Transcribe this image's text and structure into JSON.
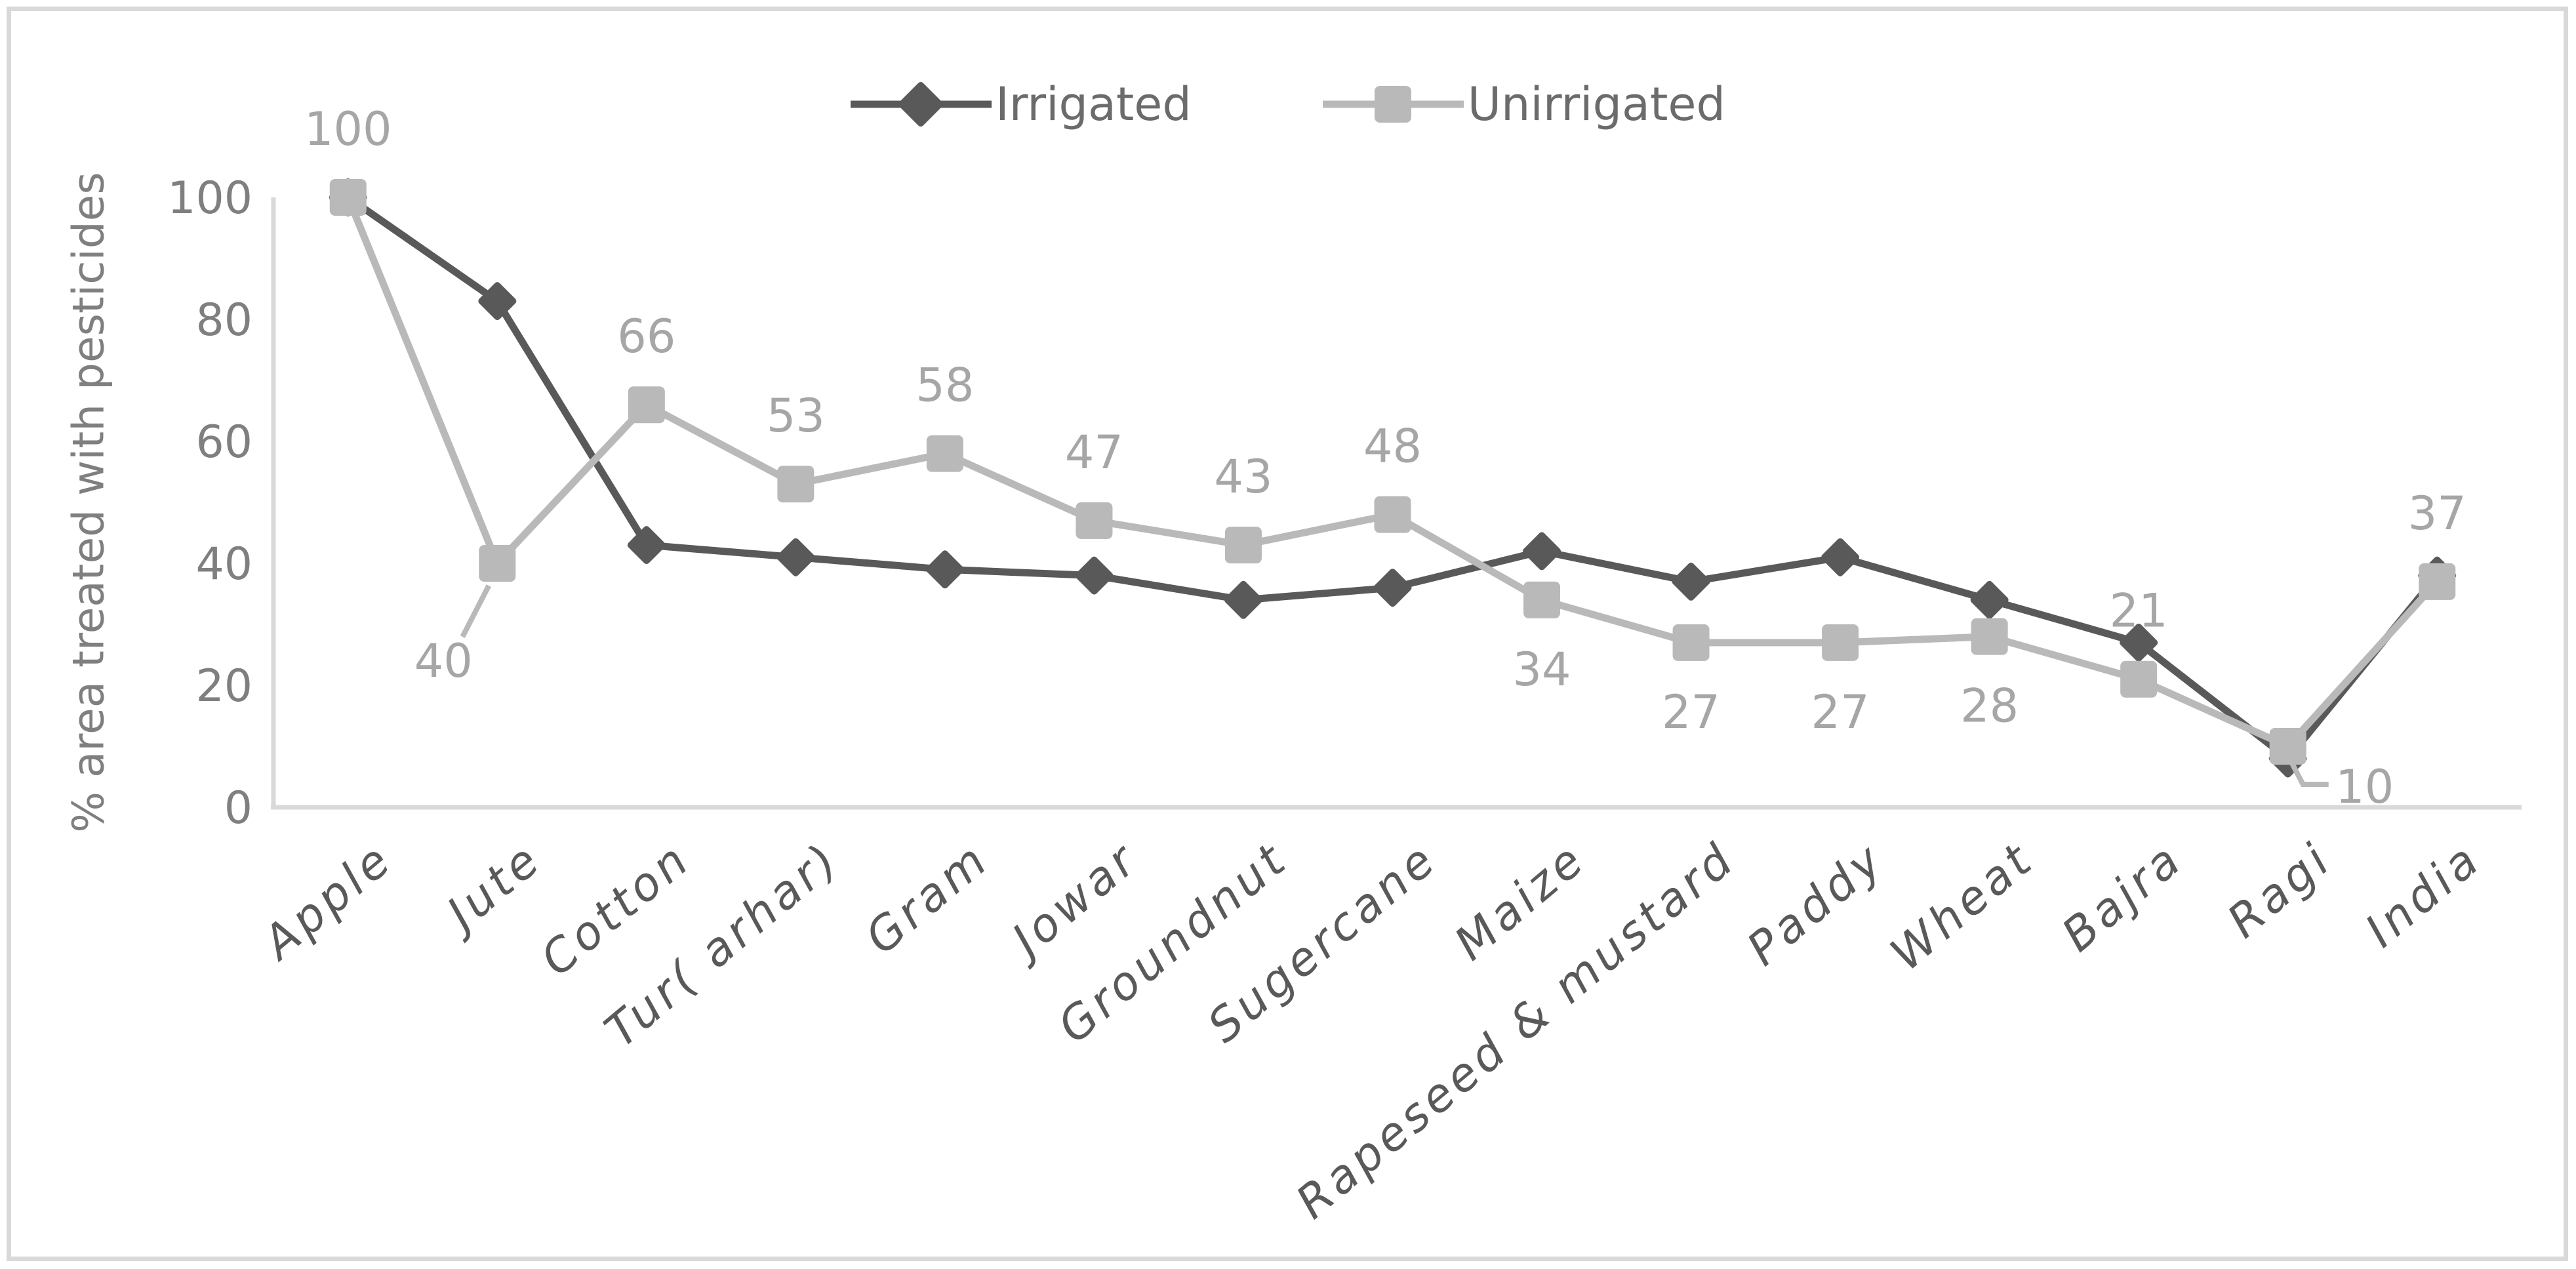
{
  "chart_data": {
    "type": "line",
    "title": "",
    "ylabel": "% area treated with pesticides",
    "xlabel": "",
    "ylim": [
      0,
      100
    ],
    "yticks": [
      0,
      20,
      40,
      60,
      80,
      100
    ],
    "grid": false,
    "legend_position": "top",
    "categories": [
      "Apple",
      "Jute",
      "Cotton",
      "Tur( arhar)",
      "Gram",
      "Jowar",
      "Groundnut",
      "Sugercane",
      "Maize",
      "Rapeseed & mustard",
      "Paddy",
      "Wheat",
      "Bajra",
      "Ragi",
      "India"
    ],
    "series": [
      {
        "name": "Irrigated",
        "marker": "diamond",
        "color": "#595959",
        "values": [
          100,
          83,
          43,
          41,
          39,
          38,
          34,
          36,
          42,
          37,
          41,
          34,
          27,
          8,
          38
        ],
        "labels_shown": false
      },
      {
        "name": "Unirrigated",
        "marker": "square",
        "color": "#b9b9b9",
        "values": [
          100,
          40,
          66,
          53,
          58,
          47,
          43,
          48,
          34,
          27,
          27,
          28,
          21,
          10,
          37
        ],
        "labels_shown": true
      }
    ],
    "data_labels": [
      "100",
      "40",
      "66",
      "53",
      "58",
      "47",
      "43",
      "48",
      "34",
      "27",
      "27",
      "28",
      "21",
      "10",
      "37"
    ],
    "colors": {
      "axis_line": "#d9d9d9",
      "tick_label": "#7f7f7f",
      "category_label": "#595959",
      "data_label": "#a6a6a6",
      "border": "#d9d9d9",
      "background": "#ffffff"
    }
  },
  "legend": {
    "items": [
      {
        "label": "Irrigated"
      },
      {
        "label": "Unirrigated"
      }
    ]
  }
}
